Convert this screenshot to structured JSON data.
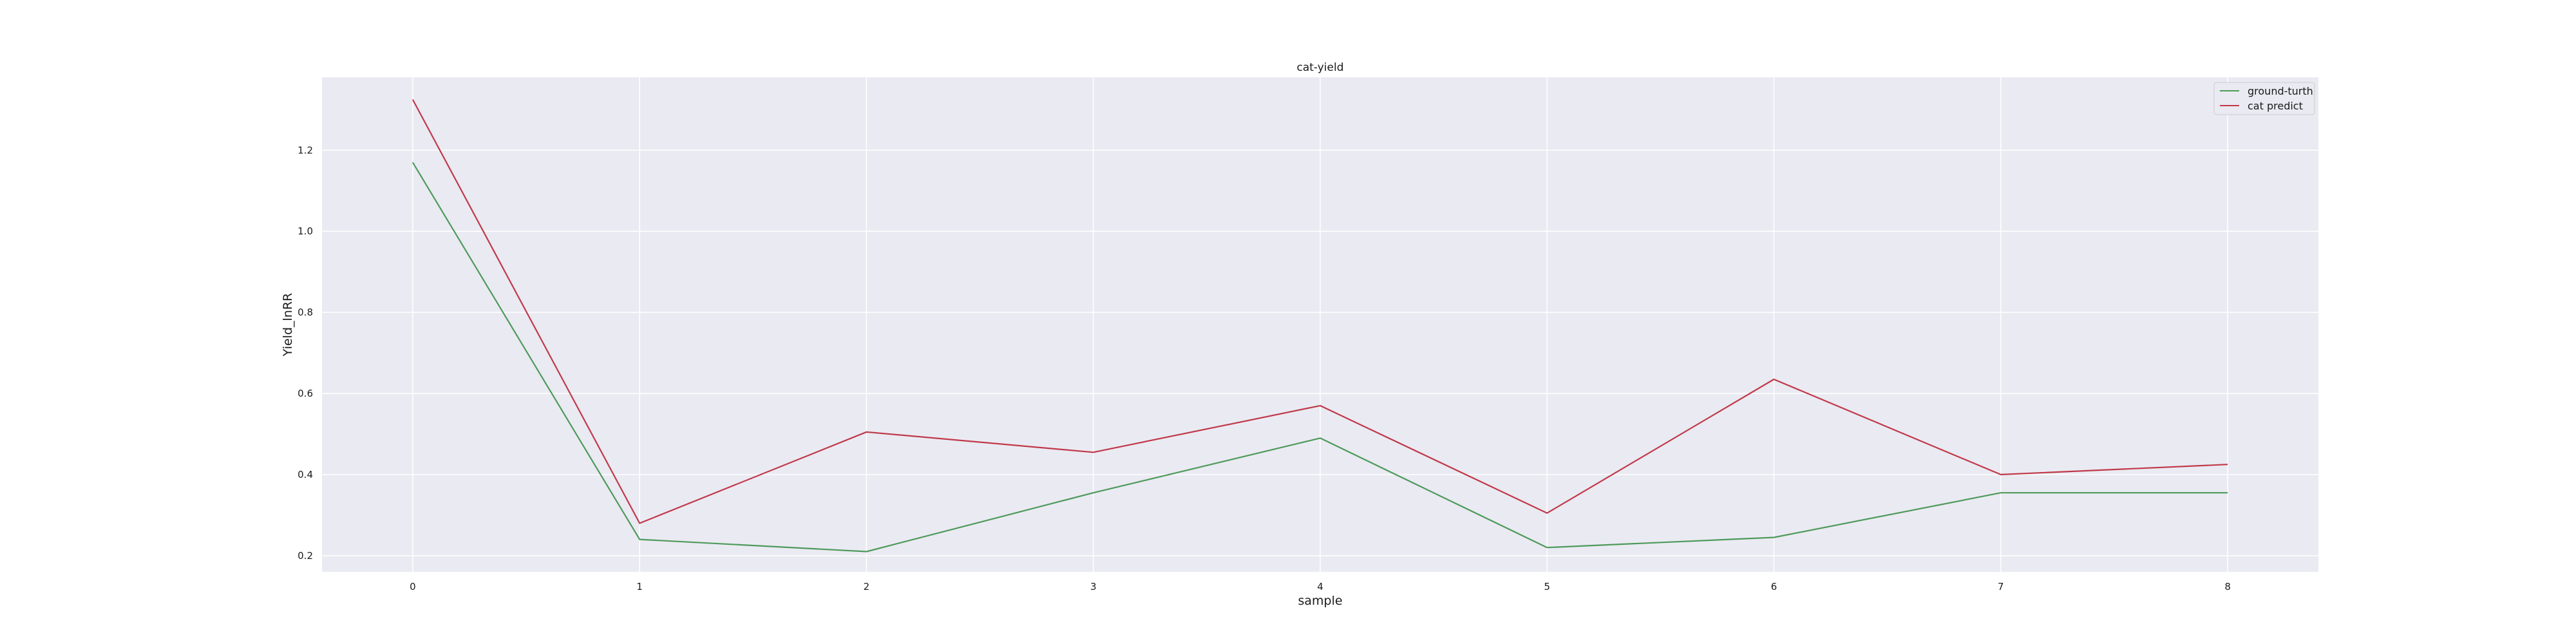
{
  "chart_data": {
    "type": "line",
    "title": "cat-yield",
    "xlabel": "sample",
    "ylabel": "Yield_lnRR",
    "x": [
      0,
      1,
      2,
      3,
      4,
      5,
      6,
      7,
      8
    ],
    "x_ticks": [
      "0",
      "1",
      "2",
      "3",
      "4",
      "5",
      "6",
      "7",
      "8"
    ],
    "y_ticks": [
      0.2,
      0.4,
      0.6,
      0.8,
      1.0,
      1.2
    ],
    "xlim": [
      -0.4,
      8.4
    ],
    "ylim": [
      0.16,
      1.38
    ],
    "grid": true,
    "legend_position": "top-right",
    "series": [
      {
        "name": "ground-turth",
        "color": "#4e9a5b",
        "values": [
          1.17,
          0.24,
          0.21,
          0.355,
          0.49,
          0.22,
          0.245,
          0.355,
          0.355
        ]
      },
      {
        "name": "cat predict",
        "color": "#c0394a",
        "values": [
          1.325,
          0.28,
          0.505,
          0.455,
          0.57,
          0.305,
          0.635,
          0.4,
          0.425
        ]
      }
    ]
  }
}
